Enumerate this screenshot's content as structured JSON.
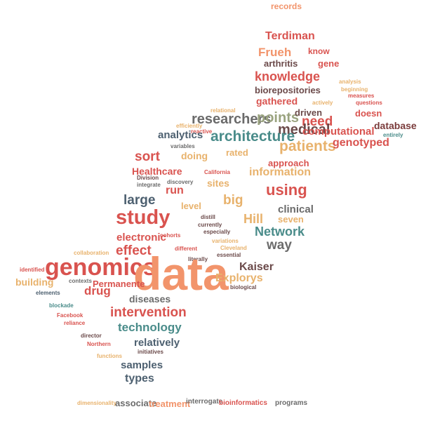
{
  "palette": {
    "red": "#d9534f",
    "orange": "#f2946b",
    "tan": "#e8b26c",
    "sage": "#9aa37f",
    "teal": "#4a8c8a",
    "slate": "#4d6070",
    "gray": "#6b6b6b",
    "maroon": "#7a3b3b"
  },
  "words": [
    {
      "text": "records",
      "color": "#f2946b"
    },
    {
      "text": "Terdiman",
      "color": "#d9534f"
    },
    {
      "text": "Frueh",
      "color": "#f2946b"
    },
    {
      "text": "know",
      "color": "#d9534f"
    },
    {
      "text": "arthritis",
      "color": "#6b4a4a"
    },
    {
      "text": "gene",
      "color": "#d9534f"
    },
    {
      "text": "knowledge",
      "color": "#d9534f"
    },
    {
      "text": "biorepositories",
      "color": "#6b4a4a"
    },
    {
      "text": "analysis",
      "color": "#e8b26c"
    },
    {
      "text": "beginning",
      "color": "#e8b26c"
    },
    {
      "text": "measures",
      "color": "#d9534f"
    },
    {
      "text": "actively",
      "color": "#e8b26c"
    },
    {
      "text": "questions",
      "color": "#d9534f"
    },
    {
      "text": "gathered",
      "color": "#d9534f"
    },
    {
      "text": "relational",
      "color": "#e8b26c"
    },
    {
      "text": "researchers",
      "color": "#6b6b6b"
    },
    {
      "text": "points",
      "color": "#9aa37f"
    },
    {
      "text": "driven",
      "color": "#6b4a4a"
    },
    {
      "text": "doesn",
      "color": "#d9534f"
    },
    {
      "text": "need",
      "color": "#d9534f"
    },
    {
      "text": "database",
      "color": "#7a3b3b"
    },
    {
      "text": "efficiently",
      "color": "#e8b26c"
    },
    {
      "text": "reactive",
      "color": "#d9534f"
    },
    {
      "text": "medical",
      "color": "#6b4a4a"
    },
    {
      "text": "computational",
      "color": "#d9534f"
    },
    {
      "text": "entirely",
      "color": "#4a8c8a"
    },
    {
      "text": "analytics",
      "color": "#4d6070"
    },
    {
      "text": "architecture",
      "color": "#4a8c8a"
    },
    {
      "text": "patients",
      "color": "#e8b26c"
    },
    {
      "text": "genotyped",
      "color": "#d9534f"
    },
    {
      "text": "variables",
      "color": "#6b6b6b"
    },
    {
      "text": "sort",
      "color": "#d9534f"
    },
    {
      "text": "doing",
      "color": "#e8b26c"
    },
    {
      "text": "rated",
      "color": "#e8b26c"
    },
    {
      "text": "approach",
      "color": "#d9534f"
    },
    {
      "text": "Healthcare",
      "color": "#d9534f"
    },
    {
      "text": "California",
      "color": "#d9534f"
    },
    {
      "text": "information",
      "color": "#e8b26c"
    },
    {
      "text": "Division",
      "color": "#6b4a4a"
    },
    {
      "text": "integrate",
      "color": "#6b6b6b"
    },
    {
      "text": "discovery",
      "color": "#6b6b6b"
    },
    {
      "text": "sites",
      "color": "#e8b26c"
    },
    {
      "text": "run",
      "color": "#d9534f"
    },
    {
      "text": "using",
      "color": "#d9534f"
    },
    {
      "text": "large",
      "color": "#4d6070"
    },
    {
      "text": "big",
      "color": "#e8b26c"
    },
    {
      "text": "level",
      "color": "#e8b26c"
    },
    {
      "text": "clinical",
      "color": "#6b6b6b"
    },
    {
      "text": "seven",
      "color": "#e8b26c"
    },
    {
      "text": "Hill",
      "color": "#e8b26c"
    },
    {
      "text": "study",
      "color": "#d9534f"
    },
    {
      "text": "distill",
      "color": "#6b4a4a"
    },
    {
      "text": "currently",
      "color": "#6b4a4a"
    },
    {
      "text": "especially",
      "color": "#6b4a4a"
    },
    {
      "text": "Network",
      "color": "#4a8c8a"
    },
    {
      "text": "electronic",
      "color": "#d9534f"
    },
    {
      "text": "cohorts",
      "color": "#d9534f"
    },
    {
      "text": "way",
      "color": "#6b6b6b"
    },
    {
      "text": "variations",
      "color": "#e8b26c"
    },
    {
      "text": "Cleveland",
      "color": "#e8b26c"
    },
    {
      "text": "collaboration",
      "color": "#e8b26c"
    },
    {
      "text": "effect",
      "color": "#d9534f"
    },
    {
      "text": "different",
      "color": "#d9534f"
    },
    {
      "text": "essential",
      "color": "#6b4a4a"
    },
    {
      "text": "literally",
      "color": "#6b4a4a"
    },
    {
      "text": "genomics",
      "color": "#d9534f"
    },
    {
      "text": "data",
      "color": "#f2946b"
    },
    {
      "text": "Kaiser",
      "color": "#6b4a4a"
    },
    {
      "text": "identified",
      "color": "#d9534f"
    },
    {
      "text": "building",
      "color": "#e8b26c"
    },
    {
      "text": "contexts",
      "color": "#6b6b6b"
    },
    {
      "text": "Permanente",
      "color": "#d9534f"
    },
    {
      "text": "Explorys",
      "color": "#e8b26c"
    },
    {
      "text": "biological",
      "color": "#6b4a4a"
    },
    {
      "text": "drug",
      "color": "#d9534f"
    },
    {
      "text": "elements",
      "color": "#4d6070"
    },
    {
      "text": "diseases",
      "color": "#6b6b6b"
    },
    {
      "text": "blockade",
      "color": "#4a8c8a"
    },
    {
      "text": "intervention",
      "color": "#d9534f"
    },
    {
      "text": "Facebook",
      "color": "#d9534f"
    },
    {
      "text": "reliance",
      "color": "#d9534f"
    },
    {
      "text": "technology",
      "color": "#4a8c8a"
    },
    {
      "text": "director",
      "color": "#6b4a4a"
    },
    {
      "text": "Northern",
      "color": "#d9534f"
    },
    {
      "text": "relatively",
      "color": "#4d6070"
    },
    {
      "text": "initiatives",
      "color": "#6b4a4a"
    },
    {
      "text": "functions",
      "color": "#e8b26c"
    },
    {
      "text": "samples",
      "color": "#4d6070"
    },
    {
      "text": "types",
      "color": "#4d6070"
    },
    {
      "text": "dimensionality",
      "color": "#e8b26c"
    },
    {
      "text": "associate",
      "color": "#6b6b6b"
    },
    {
      "text": "treatment",
      "color": "#f2946b"
    },
    {
      "text": "interrogate",
      "color": "#6b6b6b"
    },
    {
      "text": "bioinformatics",
      "color": "#d9534f"
    },
    {
      "text": "programs",
      "color": "#6b6b6b"
    }
  ]
}
